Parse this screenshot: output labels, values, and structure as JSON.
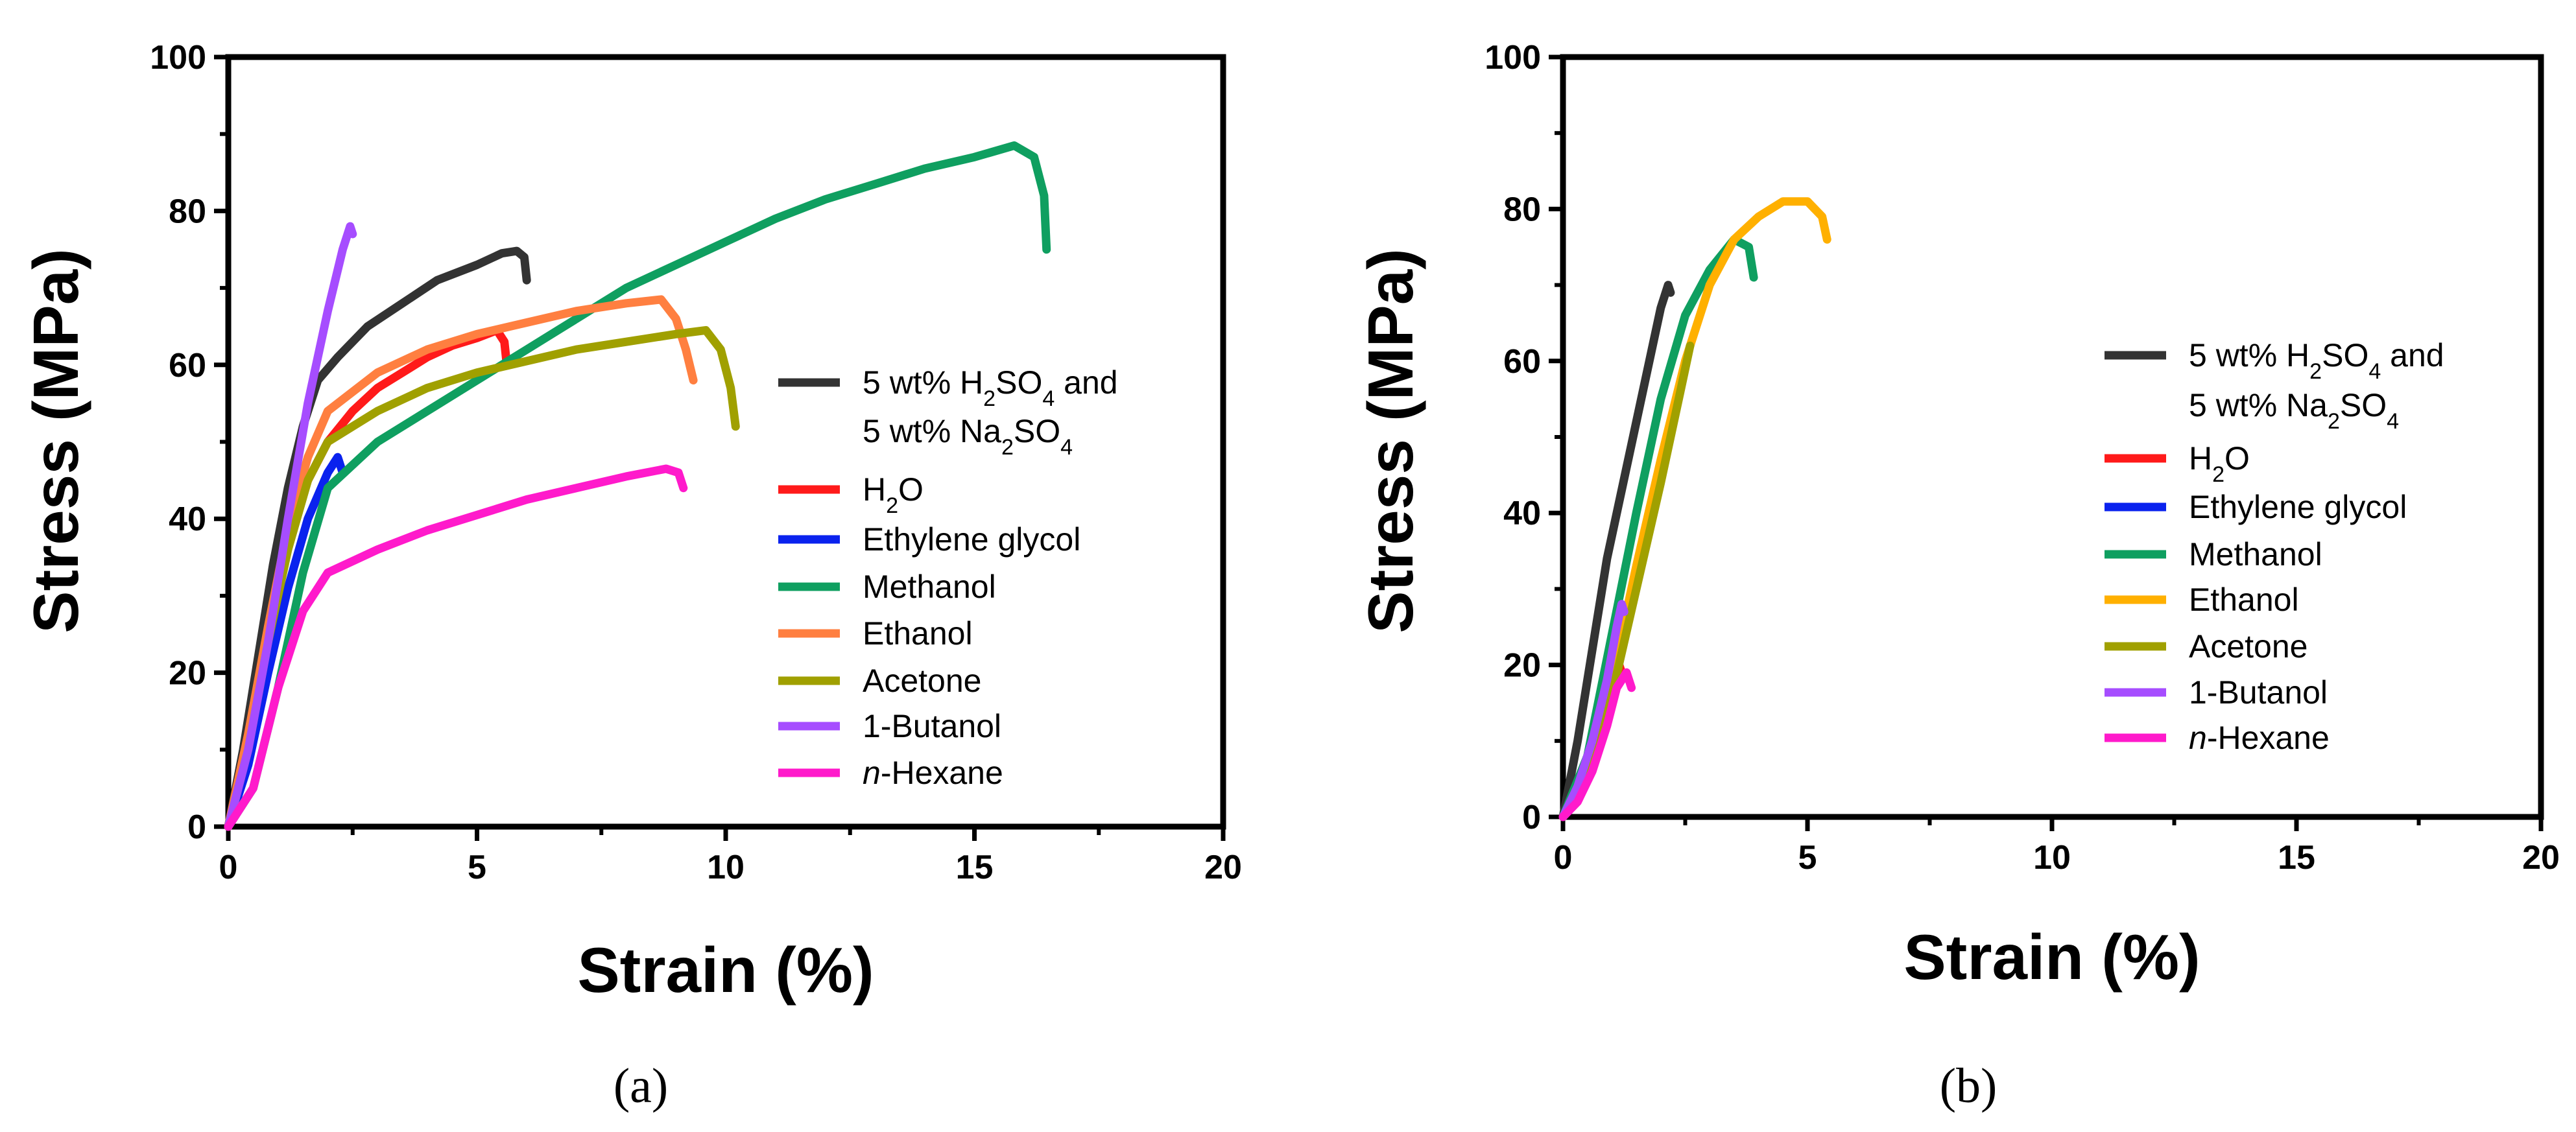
{
  "chart_data": [
    {
      "type": "line",
      "panel": "a",
      "panel_label": "(a)",
      "xlabel": "Strain (%)",
      "ylabel": "Stress (MPa)",
      "xlim": [
        0,
        20
      ],
      "ylim": [
        0,
        100
      ],
      "xticks": [
        0,
        5,
        10,
        15,
        20
      ],
      "yticks": [
        0,
        20,
        40,
        60,
        80,
        100
      ],
      "x_tick_labels": [
        "0",
        "5",
        "10",
        "15",
        "20"
      ],
      "y_tick_labels": [
        "0",
        "20",
        "40",
        "60",
        "80",
        "100"
      ],
      "legend_position": "right",
      "series": [
        {
          "name": "5 wt% H2SO4 and 5 wt% Na2SO4",
          "legend": [
            "5 wt% H",
            "2",
            "SO",
            "4",
            " and",
            "5 wt% Na",
            "2",
            "SO",
            "4"
          ],
          "color": "#333333",
          "x": [
            0,
            0.3,
            0.6,
            0.9,
            1.2,
            1.5,
            1.8,
            2.2,
            2.8,
            3.5,
            4.2,
            5.0,
            5.5,
            5.8,
            5.95,
            6.0
          ],
          "y": [
            0,
            10,
            22,
            34,
            44,
            52,
            58,
            61,
            65,
            68,
            71,
            73,
            74.5,
            74.8,
            74,
            71
          ]
        },
        {
          "name": "H2O",
          "legend": [
            "H",
            "2",
            "O"
          ],
          "color": "#ff1a1a",
          "x": [
            0,
            0.4,
            0.8,
            1.2,
            1.6,
            2.0,
            2.5,
            3.0,
            3.5,
            4.0,
            4.5,
            5.0,
            5.4,
            5.55,
            5.6
          ],
          "y": [
            0,
            12,
            25,
            37,
            45,
            50,
            54,
            57,
            59,
            61,
            62.5,
            63.5,
            64.5,
            63,
            60
          ]
        },
        {
          "name": "Ethylene glycol",
          "legend": [
            "Ethylene glycol"
          ],
          "color": "#0a22ee",
          "x": [
            0,
            0.4,
            0.8,
            1.2,
            1.6,
            2.0,
            2.2,
            2.3
          ],
          "y": [
            0,
            8,
            20,
            31,
            40,
            46,
            48,
            46
          ]
        },
        {
          "name": "Methanol",
          "legend": [
            "Methanol"
          ],
          "color": "#0f9f60",
          "x": [
            0,
            0.5,
            1.0,
            1.5,
            2.0,
            3.0,
            4.0,
            5.0,
            6.0,
            7.0,
            8.0,
            9.0,
            10.0,
            11.0,
            12.0,
            13.0,
            14.0,
            15.0,
            15.8,
            16.2,
            16.4,
            16.45
          ],
          "y": [
            0,
            5,
            18,
            33,
            44,
            50,
            54,
            58,
            62,
            66,
            70,
            73,
            76,
            79,
            81.5,
            83.5,
            85.5,
            87,
            88.5,
            87,
            82,
            75
          ]
        },
        {
          "name": "Ethanol",
          "legend": [
            "Ethanol"
          ],
          "color": "#ff7f40",
          "x": [
            0,
            0.4,
            0.8,
            1.2,
            1.6,
            2.0,
            3.0,
            4.0,
            5.0,
            6.0,
            7.0,
            8.0,
            8.7,
            9.0,
            9.2,
            9.35
          ],
          "y": [
            0,
            12,
            26,
            39,
            48,
            54,
            59,
            62,
            64,
            65.5,
            67,
            68,
            68.5,
            66,
            62,
            58
          ]
        },
        {
          "name": "Acetone",
          "legend": [
            "Acetone"
          ],
          "color": "#a0a000",
          "x": [
            0,
            0.4,
            0.8,
            1.2,
            1.6,
            2.0,
            3.0,
            4.0,
            5.0,
            6.0,
            7.0,
            8.0,
            9.0,
            9.6,
            9.9,
            10.1,
            10.2
          ],
          "y": [
            0,
            10,
            24,
            36,
            45,
            50,
            54,
            57,
            59,
            60.5,
            62,
            63,
            64,
            64.5,
            62,
            57,
            52
          ]
        },
        {
          "name": "1-Butanol",
          "legend": [
            "1-Butanol"
          ],
          "color": "#a64dff",
          "x": [
            0,
            0.4,
            0.8,
            1.2,
            1.6,
            2.0,
            2.3,
            2.45,
            2.5
          ],
          "y": [
            0,
            10,
            24,
            40,
            55,
            67,
            75,
            78,
            77
          ]
        },
        {
          "name": "n-Hexane",
          "legend": [
            "n",
            "-Hexane"
          ],
          "color": "#ff1acb",
          "x": [
            0,
            0.5,
            1.0,
            1.5,
            2.0,
            3.0,
            4.0,
            5.0,
            6.0,
            7.0,
            8.0,
            8.8,
            9.05,
            9.15
          ],
          "y": [
            0,
            5,
            18,
            28,
            33,
            36,
            38.5,
            40.5,
            42.5,
            44,
            45.5,
            46.5,
            46,
            44
          ]
        }
      ]
    },
    {
      "type": "line",
      "panel": "b",
      "panel_label": "(b)",
      "xlabel": "Strain (%)",
      "ylabel": "Stress (MPa)",
      "xlim": [
        0,
        20
      ],
      "ylim": [
        0,
        100
      ],
      "xticks": [
        0,
        5,
        10,
        15,
        20
      ],
      "yticks": [
        0,
        20,
        40,
        60,
        80,
        100
      ],
      "x_tick_labels": [
        "0",
        "5",
        "10",
        "15",
        "20"
      ],
      "y_tick_labels": [
        "0",
        "20",
        "40",
        "60",
        "80",
        "100"
      ],
      "legend_position": "right",
      "series": [
        {
          "name": "5 wt% H2SO4 and 5 wt% Na2SO4",
          "legend": [
            "5 wt% H",
            "2",
            "SO",
            "4",
            " and",
            "5 wt% Na",
            "2",
            "SO",
            "4"
          ],
          "color": "#333333",
          "x": [
            0,
            0.3,
            0.6,
            0.9,
            1.2,
            1.5,
            1.8,
            2.0,
            2.15,
            2.2
          ],
          "y": [
            0,
            10,
            22,
            34,
            43,
            52,
            61,
            67,
            70,
            69
          ]
        },
        {
          "name": "H2O",
          "legend": [
            "H",
            "2",
            "O"
          ],
          "color": "#ff1a1a",
          "x": [
            0,
            0.3,
            0.6,
            0.9,
            1.1,
            1.2
          ],
          "y": [
            0,
            4,
            10,
            17,
            21,
            19
          ]
        },
        {
          "name": "Ethylene glycol",
          "legend": [
            "Ethylene glycol"
          ],
          "color": "#0a22ee",
          "x": [
            0,
            0.3,
            0.6,
            0.9,
            1.1,
            1.2
          ],
          "y": [
            0,
            4,
            10,
            17,
            23,
            25
          ]
        },
        {
          "name": "Methanol",
          "legend": [
            "Methanol"
          ],
          "color": "#0f9f60",
          "x": [
            0,
            0.5,
            1.0,
            1.5,
            2.0,
            2.5,
            3.0,
            3.5,
            3.8,
            3.9
          ],
          "y": [
            0,
            8,
            24,
            40,
            55,
            66,
            72,
            76,
            75,
            71
          ]
        },
        {
          "name": "Ethanol",
          "legend": [
            "Ethanol"
          ],
          "color": "#ffb000",
          "x": [
            0,
            0.5,
            1.0,
            1.5,
            2.0,
            2.5,
            3.0,
            3.5,
            4.0,
            4.5,
            5.0,
            5.3,
            5.4
          ],
          "y": [
            0,
            6,
            18,
            33,
            47,
            60,
            70,
            76,
            79,
            81,
            81,
            79,
            76
          ]
        },
        {
          "name": "Acetone",
          "legend": [
            "Acetone"
          ],
          "color": "#a0a000",
          "x": [
            0,
            0.5,
            1.0,
            1.5,
            2.0,
            2.4,
            2.6
          ],
          "y": [
            0,
            5,
            16,
            30,
            44,
            56,
            62
          ]
        },
        {
          "name": "1-Butanol",
          "legend": [
            "1-Butanol"
          ],
          "color": "#a64dff",
          "x": [
            0,
            0.3,
            0.6,
            0.9,
            1.1,
            1.2,
            1.25
          ],
          "y": [
            0,
            4,
            10,
            18,
            25,
            28,
            27
          ]
        },
        {
          "name": "n-Hexane",
          "legend": [
            "n",
            "-Hexane"
          ],
          "color": "#ff1acb",
          "x": [
            0,
            0.3,
            0.6,
            0.9,
            1.1,
            1.3,
            1.4
          ],
          "y": [
            0,
            2,
            6,
            12,
            17,
            19,
            17
          ]
        }
      ]
    }
  ]
}
